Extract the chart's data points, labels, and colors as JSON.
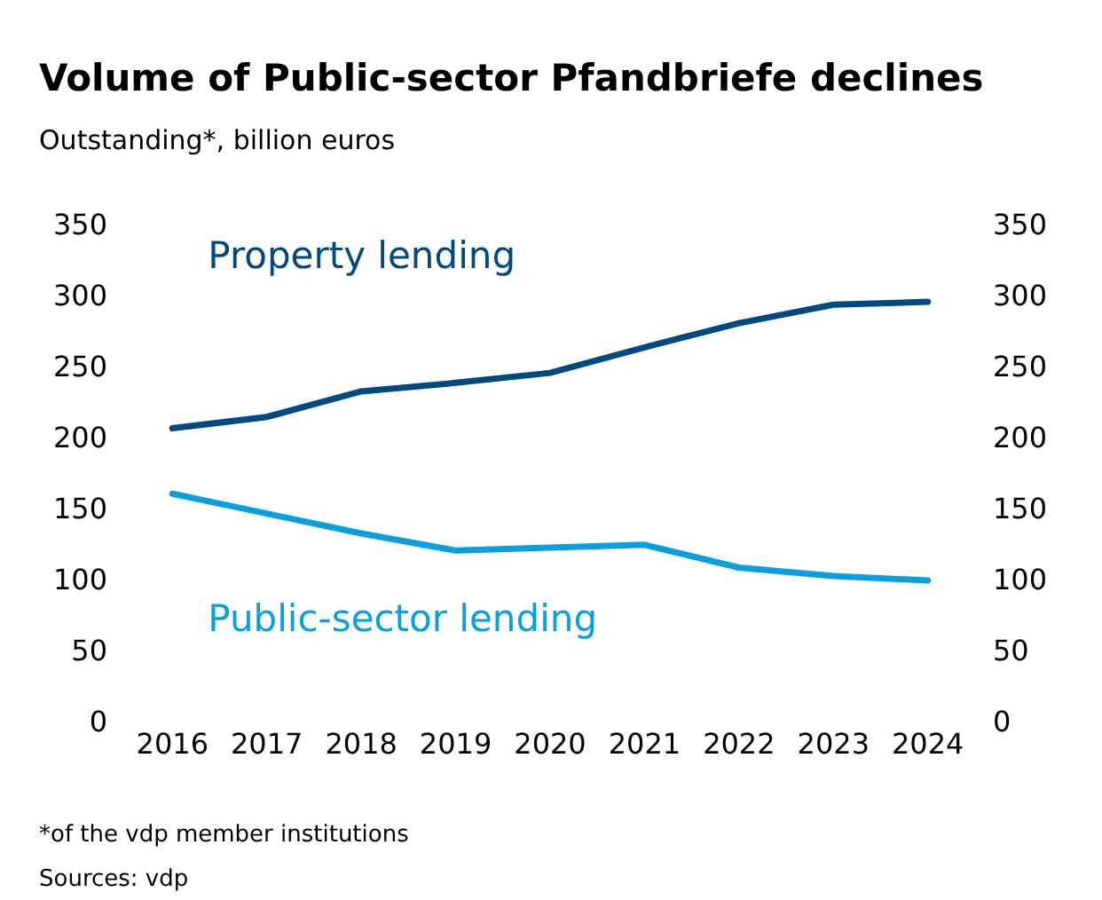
{
  "chart_data": {
    "type": "line",
    "title": "Volume of Public-sector Pfandbriefe declines",
    "subtitle": "Outstanding*, billion euros",
    "categories": [
      "2016",
      "2017",
      "2018",
      "2019",
      "2020",
      "2021",
      "2022",
      "2023",
      "2024"
    ],
    "series": [
      {
        "name": "Property lending",
        "color": "#004a7f",
        "values": [
          208,
          216,
          234,
          240,
          247,
          265,
          282,
          295,
          297
        ]
      },
      {
        "name": "Public-sector lending",
        "color": "#0aa0e0",
        "values": [
          162,
          148,
          134,
          122,
          124,
          126,
          110,
          104,
          101
        ]
      }
    ],
    "ylim": [
      0,
      350
    ],
    "yticks": [
      0,
      50,
      100,
      150,
      200,
      250,
      300,
      350
    ],
    "y2lim": [
      0,
      350
    ],
    "y2ticks": [
      0,
      50,
      100,
      150,
      200,
      250,
      300,
      350
    ],
    "grid": false,
    "legend": false,
    "marker": "none",
    "line_style": "solid",
    "annotations": [
      "*of the vdp member institutions",
      "Sources: vdp"
    ]
  }
}
